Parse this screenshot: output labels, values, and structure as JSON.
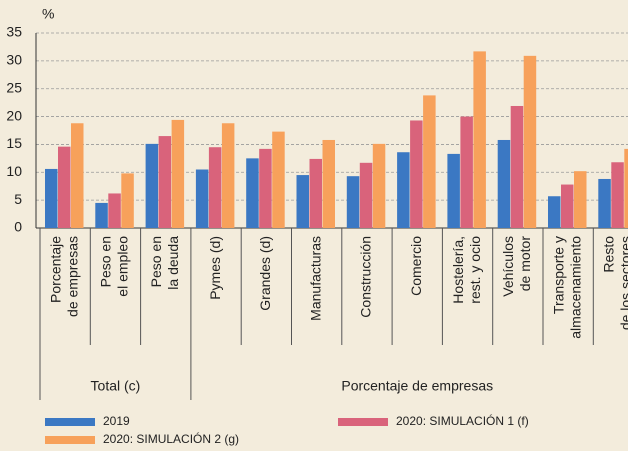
{
  "chart_data": {
    "type": "bar",
    "y_label": "%",
    "categories": [
      [
        "Porcentaje",
        "de empresas"
      ],
      [
        "Peso en",
        "el empleo"
      ],
      [
        "Peso en",
        "la deuda"
      ],
      [
        "Pymes (d)"
      ],
      [
        "Grandes (d)"
      ],
      [
        "Manufacturas"
      ],
      [
        "Construcción"
      ],
      [
        "Comercio"
      ],
      [
        "Hostelería,",
        "rest. y ocio"
      ],
      [
        "Vehículos",
        "de motor"
      ],
      [
        "Transporte y",
        "almacenamiento"
      ],
      [
        "Resto",
        "de los sectores"
      ]
    ],
    "group_labels": [
      "Total (c)",
      "Porcentaje de empresas"
    ],
    "series": [
      {
        "name": "2019",
        "color": "#3b78c3",
        "values": [
          10.6,
          4.5,
          15.1,
          10.5,
          12.5,
          9.5,
          9.3,
          13.6,
          13.3,
          15.8,
          5.7,
          8.8
        ]
      },
      {
        "name": "2020: SIMULACIÓN 1 (f)",
        "color": "#d9637b",
        "values": [
          14.6,
          6.2,
          16.5,
          14.5,
          14.2,
          12.4,
          11.7,
          19.3,
          20.0,
          21.9,
          7.8,
          11.8
        ]
      },
      {
        "name": "2020: SIMULACIÓN 2 (g)",
        "color": "#f7a15b",
        "values": [
          18.8,
          9.8,
          19.4,
          18.8,
          17.3,
          15.8,
          15.1,
          23.8,
          31.7,
          30.9,
          10.2,
          14.2
        ]
      }
    ],
    "ylim": [
      0,
      35
    ],
    "yticks": [
      0,
      5,
      10,
      15,
      20,
      25,
      30,
      35
    ],
    "grid": true
  }
}
